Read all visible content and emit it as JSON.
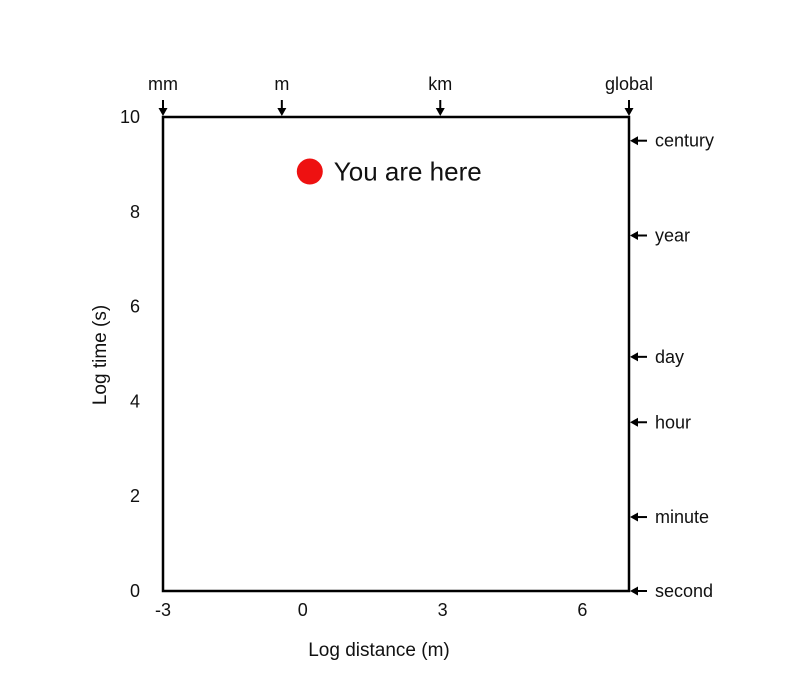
{
  "chart_data": {
    "type": "scatter",
    "xlabel": "Log distance (m)",
    "ylabel": "Log time (s)",
    "xlim": [
      -3,
      7
    ],
    "ylim": [
      0,
      10
    ],
    "x_ticks": [
      {
        "value": -3,
        "label": "-3"
      },
      {
        "value": 0,
        "label": "0"
      },
      {
        "value": 3,
        "label": "3"
      },
      {
        "value": 6,
        "label": "6"
      }
    ],
    "y_ticks": [
      {
        "value": 0,
        "label": "0"
      },
      {
        "value": 2,
        "label": "2"
      },
      {
        "value": 4,
        "label": "4"
      },
      {
        "value": 6,
        "label": "6"
      },
      {
        "value": 8,
        "label": "8"
      },
      {
        "value": 10,
        "label": "10"
      }
    ],
    "distance_markers": [
      {
        "label": "mm",
        "value": -3
      },
      {
        "label": "m",
        "value": -0.45
      },
      {
        "label": "km",
        "value": 2.95
      },
      {
        "label": "global",
        "value": 7
      }
    ],
    "time_markers": [
      {
        "label": "century",
        "value": 9.5
      },
      {
        "label": "year",
        "value": 7.5
      },
      {
        "label": "day",
        "value": 4.94
      },
      {
        "label": "hour",
        "value": 3.56
      },
      {
        "label": "minute",
        "value": 1.56
      },
      {
        "label": "second",
        "value": 0
      }
    ],
    "points": [
      {
        "x": 0.15,
        "y": 8.85,
        "label": "You are here",
        "color": "#ee1111"
      }
    ],
    "grid": false,
    "frame_color": "#000000"
  }
}
